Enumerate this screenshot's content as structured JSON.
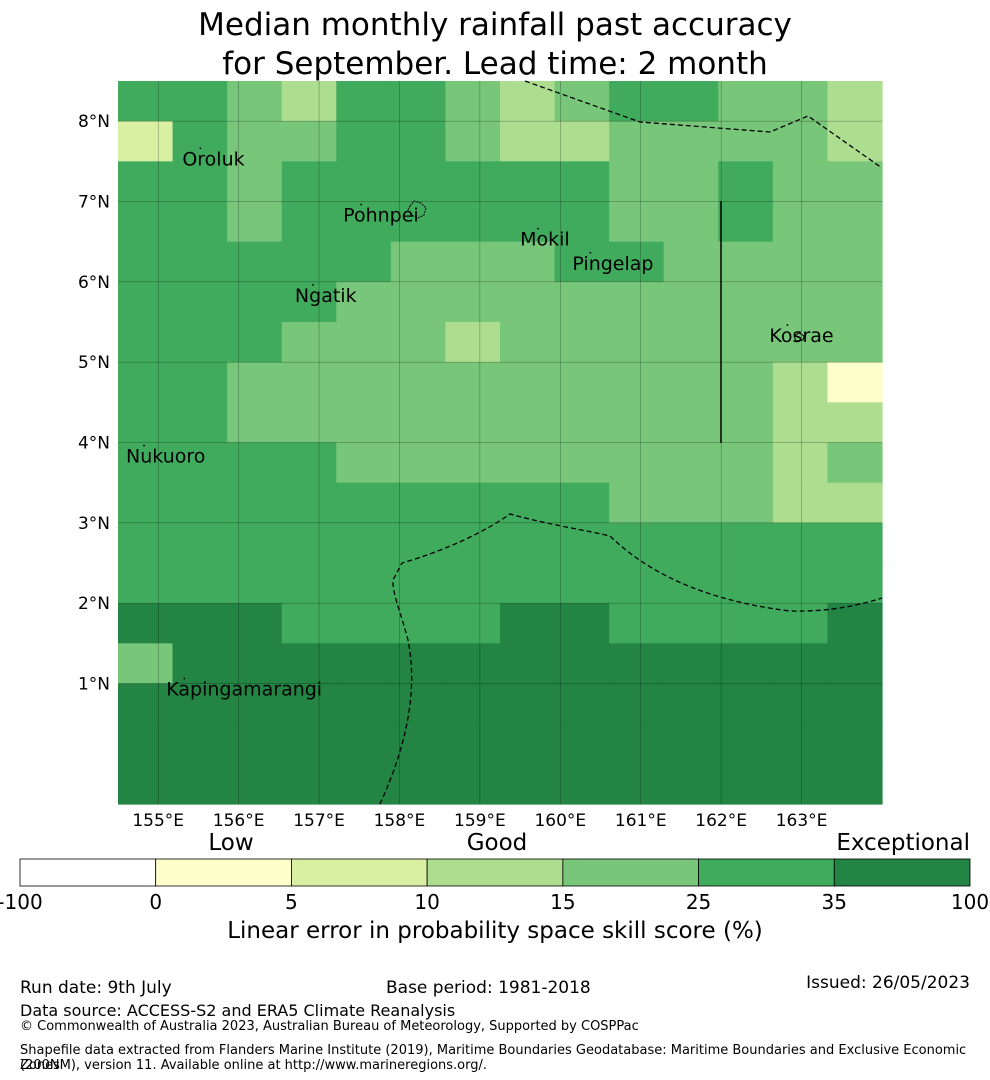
{
  "title_line1": "Median monthly rainfall past accuracy",
  "title_line2": "for September. Lead time: 2 month",
  "map": {
    "lon_ticks": [
      {
        "value": 155,
        "label": "155°E"
      },
      {
        "value": 156,
        "label": "156°E"
      },
      {
        "value": 157,
        "label": "157°E"
      },
      {
        "value": 158,
        "label": "158°E"
      },
      {
        "value": 159,
        "label": "159°E"
      },
      {
        "value": 160,
        "label": "160°E"
      },
      {
        "value": 161,
        "label": "161°E"
      },
      {
        "value": 162,
        "label": "162°E"
      },
      {
        "value": 163,
        "label": "163°E"
      }
    ],
    "lat_ticks": [
      {
        "value": 8,
        "label": "8°N"
      },
      {
        "value": 7,
        "label": "7°N"
      },
      {
        "value": 6,
        "label": "6°N"
      },
      {
        "value": 5,
        "label": "5°N"
      },
      {
        "value": 4,
        "label": "4°N"
      },
      {
        "value": 3,
        "label": "3°N"
      },
      {
        "value": 2,
        "label": "2°N"
      },
      {
        "value": 1,
        "label": "1°N"
      }
    ],
    "places": [
      {
        "name": "Oroluk",
        "lon": 155.3,
        "lat": 7.45
      },
      {
        "name": "Pohnpei",
        "lon": 157.3,
        "lat": 6.75
      },
      {
        "name": "Mokil",
        "lon": 159.5,
        "lat": 6.45
      },
      {
        "name": "Pingelap",
        "lon": 160.15,
        "lat": 6.15
      },
      {
        "name": "Ngatik",
        "lon": 156.7,
        "lat": 5.75
      },
      {
        "name": "Kosrae",
        "lon": 162.6,
        "lat": 5.25
      },
      {
        "name": "Nukuoro",
        "lon": 154.6,
        "lat": 3.75
      },
      {
        "name": "Kapingamarangi",
        "lon": 155.1,
        "lat": 0.85
      }
    ],
    "grid_values": [
      [
        25,
        25,
        15,
        10,
        25,
        25,
        15,
        10,
        15,
        25,
        25,
        15,
        15,
        10
      ],
      [
        5,
        25,
        15,
        15,
        25,
        25,
        15,
        10,
        10,
        15,
        15,
        15,
        15,
        10
      ],
      [
        25,
        25,
        15,
        25,
        25,
        25,
        25,
        25,
        25,
        15,
        15,
        25,
        15,
        15
      ],
      [
        25,
        25,
        15,
        25,
        25,
        25,
        25,
        25,
        25,
        15,
        15,
        25,
        15,
        15
      ],
      [
        25,
        25,
        25,
        25,
        25,
        15,
        15,
        15,
        25,
        25,
        15,
        15,
        15,
        15
      ],
      [
        25,
        25,
        25,
        25,
        15,
        15,
        15,
        15,
        15,
        15,
        15,
        15,
        15,
        15
      ],
      [
        25,
        25,
        25,
        15,
        15,
        15,
        10,
        15,
        15,
        15,
        15,
        15,
        15,
        15
      ],
      [
        25,
        25,
        15,
        15,
        15,
        15,
        15,
        15,
        15,
        15,
        15,
        15,
        10,
        0
      ],
      [
        25,
        25,
        15,
        15,
        15,
        15,
        15,
        15,
        15,
        15,
        15,
        15,
        10,
        10
      ],
      [
        25,
        25,
        25,
        25,
        15,
        15,
        15,
        15,
        15,
        15,
        15,
        15,
        10,
        15
      ],
      [
        25,
        25,
        25,
        25,
        25,
        25,
        25,
        25,
        25,
        15,
        15,
        15,
        10,
        10
      ],
      [
        25,
        25,
        25,
        25,
        25,
        25,
        25,
        25,
        25,
        25,
        25,
        25,
        25,
        25
      ],
      [
        25,
        25,
        25,
        25,
        25,
        25,
        25,
        25,
        25,
        25,
        25,
        25,
        25,
        25
      ],
      [
        35,
        35,
        35,
        25,
        25,
        25,
        25,
        35,
        35,
        25,
        25,
        25,
        25,
        35
      ],
      [
        15,
        35,
        35,
        35,
        35,
        35,
        35,
        35,
        35,
        35,
        35,
        35,
        35,
        35
      ],
      [
        35,
        35,
        35,
        35,
        35,
        35,
        35,
        35,
        35,
        35,
        35,
        35,
        35,
        35
      ],
      [
        35,
        35,
        35,
        35,
        35,
        35,
        35,
        35,
        35,
        35,
        35,
        35,
        35,
        35
      ],
      [
        35,
        35,
        35,
        35,
        35,
        35,
        35,
        35,
        35,
        35,
        35,
        35,
        35,
        35
      ]
    ]
  },
  "colorbar": {
    "categories": [
      {
        "label": "Low"
      },
      {
        "label": "Good"
      },
      {
        "label": "Exceptional"
      }
    ],
    "bins": [
      {
        "from": -100,
        "to": 0,
        "color": "#ffffff"
      },
      {
        "from": 0,
        "to": 5,
        "color": "#ffffcc"
      },
      {
        "from": 5,
        "to": 10,
        "color": "#d9f0a3"
      },
      {
        "from": 10,
        "to": 15,
        "color": "#addd8e"
      },
      {
        "from": 15,
        "to": 25,
        "color": "#78c679"
      },
      {
        "from": 25,
        "to": 35,
        "color": "#41ab5d"
      },
      {
        "from": 35,
        "to": 100,
        "color": "#238443"
      }
    ],
    "ticks": [
      "-100",
      "0",
      "5",
      "10",
      "15",
      "25",
      "35",
      "100"
    ],
    "title": "Linear error in probability space skill score (%)"
  },
  "footer": {
    "run_date": "Run date: 9th July",
    "base_period": "Base period: 1981-2018",
    "issued": "Issued: 26/05/2023",
    "data_source": "Data source: ACCESS-S2 and ERA5 Climate Reanalysis",
    "copyright": "© Commonwealth of Australia 2023, Australian Bureau of Meteorology, Supported by COSPPac",
    "shapefile_line1": "Shapefile data extracted from Flanders Marine Institute (2019), Maritime Boundaries Geodatabase: Maritime Boundaries and Exclusive Economic Zones",
    "shapefile_line2": "(200NM), version 11. Available online at http://www.marineregions.org/."
  }
}
